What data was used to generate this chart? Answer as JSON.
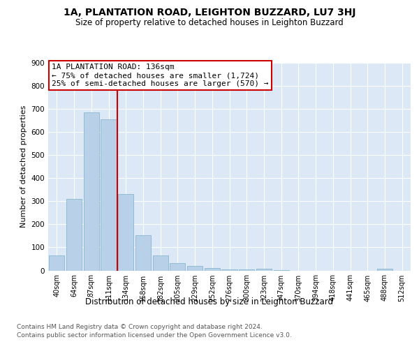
{
  "title": "1A, PLANTATION ROAD, LEIGHTON BUZZARD, LU7 3HJ",
  "subtitle": "Size of property relative to detached houses in Leighton Buzzard",
  "xlabel": "Distribution of detached houses by size in Leighton Buzzard",
  "ylabel": "Number of detached properties",
  "bar_labels": [
    "40sqm",
    "64sqm",
    "87sqm",
    "111sqm",
    "134sqm",
    "158sqm",
    "182sqm",
    "205sqm",
    "229sqm",
    "252sqm",
    "276sqm",
    "300sqm",
    "323sqm",
    "347sqm",
    "370sqm",
    "394sqm",
    "418sqm",
    "441sqm",
    "465sqm",
    "488sqm",
    "512sqm"
  ],
  "bar_values": [
    65,
    310,
    685,
    655,
    330,
    152,
    65,
    33,
    20,
    10,
    5,
    5,
    7,
    2,
    0,
    0,
    0,
    0,
    0,
    8,
    0
  ],
  "bar_color": "#b8d0e8",
  "bar_edge_color": "#7aafc8",
  "vline_x": 3.5,
  "vline_color": "#cc0000",
  "annotation_title": "1A PLANTATION ROAD: 136sqm",
  "annotation_line1": "← 75% of detached houses are smaller (1,724)",
  "annotation_line2": "25% of semi-detached houses are larger (570) →",
  "annotation_box_edge": "#cc0000",
  "ylim": [
    0,
    900
  ],
  "yticks": [
    0,
    100,
    200,
    300,
    400,
    500,
    600,
    700,
    800,
    900
  ],
  "grid_color": "#ffffff",
  "bg_color": "#dce8f5",
  "footer_line1": "Contains HM Land Registry data © Crown copyright and database right 2024.",
  "footer_line2": "Contains public sector information licensed under the Open Government Licence v3.0.",
  "title_fontsize": 10,
  "subtitle_fontsize": 8.5,
  "ylabel_fontsize": 8,
  "xlabel_fontsize": 8.5,
  "tick_fontsize": 7,
  "footer_fontsize": 6.5,
  "annot_fontsize": 8
}
